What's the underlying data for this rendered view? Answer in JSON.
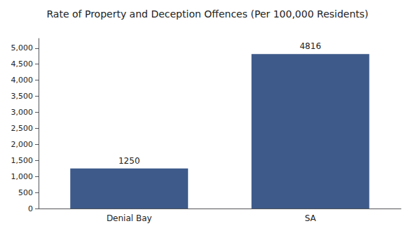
{
  "chart_data": {
    "type": "bar",
    "title": "Rate of Property and Deception Offences (Per 100,000 Residents)",
    "categories": [
      "Denial Bay",
      "SA"
    ],
    "values": [
      1250,
      4816
    ],
    "color": "#3d5a8a",
    "ylim": [
      0,
      5300
    ],
    "yticks": [
      0,
      500,
      1000,
      1500,
      2000,
      2500,
      3000,
      3500,
      4000,
      4500,
      5000
    ],
    "grid": false,
    "data_labels": true
  }
}
